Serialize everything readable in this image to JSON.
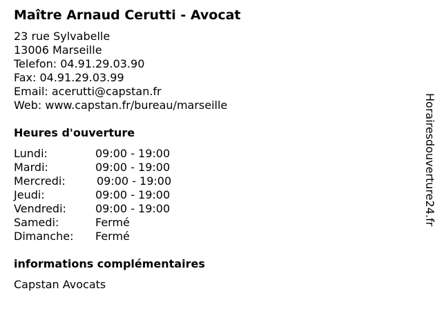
{
  "title": "Maître Arnaud Cerutti - Avocat",
  "address": [
    "23 rue Sylvabelle",
    "13006 Marseille",
    "Telefon: 04.91.29.03.90",
    "Fax: 04.91.29.03.99",
    "Email: acerutti@capstan.fr",
    "Web: www.capstan.fr/bureau/marseille"
  ],
  "hours_heading": "Heures d'ouverture",
  "hours": [
    {
      "day": "Lundi:",
      "time": "09:00 - 19:00"
    },
    {
      "day": "Mardi:",
      "time": "09:00 - 19:00"
    },
    {
      "day": "Mercredi:",
      "time": "09:00 - 19:00"
    },
    {
      "day": "Jeudi:",
      "time": "09:00 - 19:00"
    },
    {
      "day": "Vendredi:",
      "time": "09:00 - 19:00"
    },
    {
      "day": "Samedi:",
      "time": "Fermé"
    },
    {
      "day": "Dimanche:",
      "time": "Fermé"
    }
  ],
  "info_heading": "informations complémentaires",
  "info_text": "Capstan Avocats",
  "watermark": "Horairesdouverture24.fr"
}
